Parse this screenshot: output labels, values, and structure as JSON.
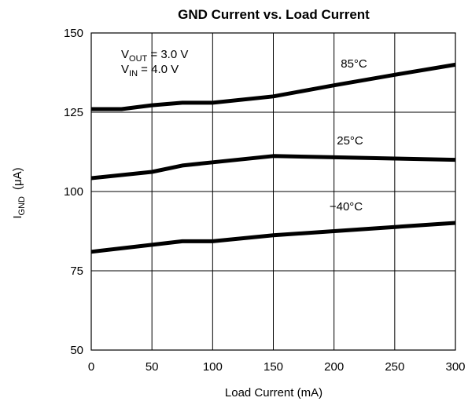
{
  "chart_data": {
    "type": "line",
    "title": "GND Current vs. Load Current",
    "xlabel": "Load Current (mA)",
    "ylabel": {
      "main": "I",
      "sub": "GND",
      "unit": "(μA)"
    },
    "xlim": [
      0,
      300
    ],
    "ylim": [
      50,
      150
    ],
    "xticks": [
      0,
      50,
      100,
      150,
      200,
      250,
      300
    ],
    "yticks": [
      50,
      75,
      100,
      125,
      150
    ],
    "grid": true,
    "annotations": [
      {
        "main": "V",
        "sub": "OUT",
        "rest": " = 3.0 V"
      },
      {
        "main": "V",
        "sub": "IN",
        "rest": " = 4.0 V"
      }
    ],
    "series": [
      {
        "name": "85°C",
        "x": [
          0,
          25,
          50,
          75,
          100,
          150,
          200,
          250,
          300
        ],
        "y": [
          126,
          126,
          127.2,
          128,
          128,
          130,
          133.5,
          136.8,
          140
        ]
      },
      {
        "name": "25°C",
        "x": [
          0,
          50,
          75,
          100,
          150,
          200,
          250,
          300
        ],
        "y": [
          104.2,
          106.2,
          108.2,
          109.2,
          111.2,
          110.8,
          110.4,
          110
        ]
      },
      {
        "name": "−40°C",
        "x": [
          0,
          50,
          75,
          100,
          150,
          200,
          250,
          300
        ],
        "y": [
          81,
          83.2,
          84.3,
          84.3,
          86.2,
          87.5,
          88.8,
          90.1
        ]
      }
    ]
  }
}
